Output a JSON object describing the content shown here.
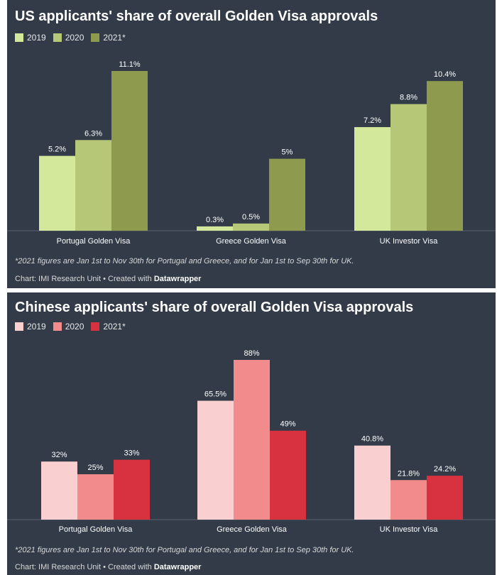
{
  "chart_data": [
    {
      "type": "bar",
      "title": "US applicants' share of overall Golden Visa approvals",
      "categories": [
        "Portugal Golden Visa",
        "Greece Golden Visa",
        "UK Investor Visa"
      ],
      "series": [
        {
          "name": "2019",
          "values": [
            5.2,
            0.3,
            7.2
          ],
          "labels": [
            "5.2%",
            "0.3%",
            "7.2%"
          ],
          "color": "#d4e89b"
        },
        {
          "name": "2020",
          "values": [
            6.3,
            0.5,
            8.8
          ],
          "labels": [
            "6.3%",
            "0.5%",
            "8.8%"
          ],
          "color": "#b6c878"
        },
        {
          "name": "2021*",
          "values": [
            11.1,
            5,
            10.4
          ],
          "labels": [
            "11.1%",
            "5%",
            "10.4%"
          ],
          "color": "#8e9a4e"
        }
      ],
      "ylim": [
        0,
        11.1
      ],
      "legend_position": "top-left",
      "note": "*2021 figures are Jan 1st to Nov 30th for Portugal and Greece, and for Jan 1st to Sep 30th for UK.",
      "credit_prefix": "Chart: IMI Research Unit • Created with ",
      "credit_brand": "Datawrapper"
    },
    {
      "type": "bar",
      "title": "Chinese applicants' share of overall Golden Visa approvals",
      "categories": [
        "Portugal Golden Visa",
        "Greece Golden Visa",
        "UK Investor Visa"
      ],
      "series": [
        {
          "name": "2019",
          "values": [
            32,
            65.5,
            40.8
          ],
          "labels": [
            "32%",
            "65.5%",
            "40.8%"
          ],
          "color": "#f9cfcf"
        },
        {
          "name": "2020",
          "values": [
            25,
            88,
            21.8
          ],
          "labels": [
            "25%",
            "88%",
            "21.8%"
          ],
          "color": "#f28b8b"
        },
        {
          "name": "2021*",
          "values": [
            33,
            49,
            24.2
          ],
          "labels": [
            "33%",
            "49%",
            "24.2%"
          ],
          "color": "#d8313f"
        }
      ],
      "ylim": [
        0,
        88
      ],
      "legend_position": "top-left",
      "note": "*2021 figures are Jan 1st to Nov 30th for Portugal and Greece, and for Jan 1st to Sep 30th for UK.",
      "credit_prefix": "Chart: IMI Research Unit • Created with ",
      "credit_brand": "Datawrapper"
    }
  ]
}
